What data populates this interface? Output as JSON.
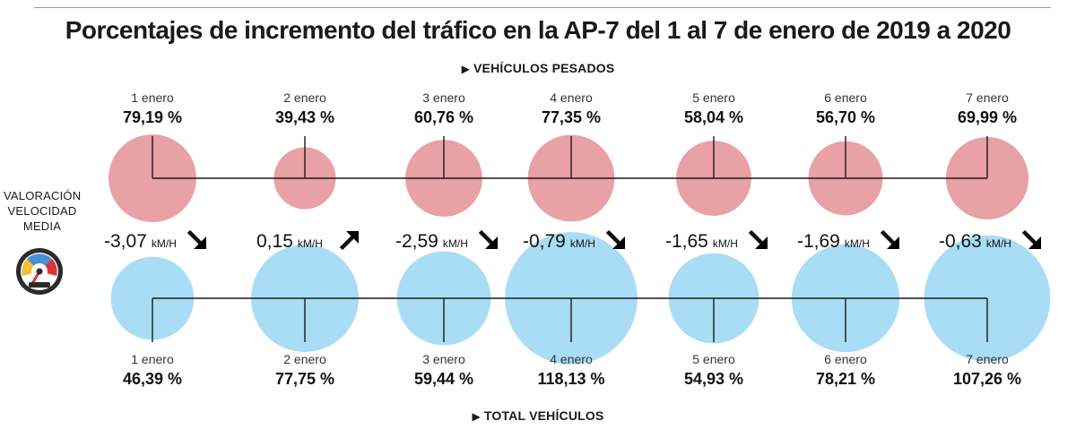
{
  "title": "Porcentajes de incremento del tráfico en la AP-7 del 1 al 7 de enero de 2019 a 2020",
  "heavy_label": "VEHÍCULOS PESADOS",
  "total_label": "TOTAL VEHÍCULOS",
  "speed_label": [
    "VALORACIÓN",
    "VELOCIDAD",
    "MEDIA"
  ],
  "colors": {
    "heavy": "#e8a1a4",
    "total": "#a8ddf5",
    "line": "#1a1a1a"
  },
  "chart_data": {
    "type": "bubble",
    "title": "Porcentajes de incremento del tráfico en la AP-7 del 1 al 7 de enero de 2019 a 2020",
    "categories": [
      "1 enero",
      "2 enero",
      "3 enero",
      "4 enero",
      "5 enero",
      "6 enero",
      "7 enero"
    ],
    "series": [
      {
        "name": "VEHÍCULOS PESADOS",
        "values": [
          79.19,
          39.43,
          60.76,
          77.35,
          58.04,
          56.7,
          69.99
        ],
        "labels": [
          "79,19 %",
          "39,43 %",
          "60,76 %",
          "77,35 %",
          "58,04 %",
          "56,70 %",
          "69,99 %"
        ]
      },
      {
        "name": "TOTAL VEHÍCULOS",
        "values": [
          46.39,
          77.75,
          59.44,
          118.13,
          54.93,
          78.21,
          107.26
        ],
        "labels": [
          "46,39 %",
          "77,75 %",
          "59,44 %",
          "118,13 %",
          "54,93 %",
          "78,21 %",
          "107,26 %"
        ]
      }
    ],
    "speed_change": {
      "name": "VALORACIÓN VELOCIDAD MEDIA",
      "unit": "kM/H",
      "values": [
        -3.07,
        0.15,
        -2.59,
        -0.79,
        -1.65,
        -1.69,
        -0.63
      ],
      "labels": [
        "-3,07",
        "0,15",
        "-2,59",
        "-0,79",
        "-1,65",
        "-1,69",
        "-0,63"
      ],
      "direction": [
        "down",
        "up",
        "down",
        "down",
        "down",
        "down",
        "down"
      ]
    }
  }
}
